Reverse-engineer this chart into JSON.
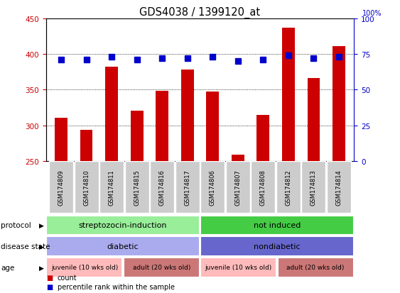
{
  "title": "GDS4038 / 1399120_at",
  "samples": [
    "GSM174809",
    "GSM174810",
    "GSM174811",
    "GSM174815",
    "GSM174816",
    "GSM174817",
    "GSM174806",
    "GSM174807",
    "GSM174808",
    "GSM174812",
    "GSM174813",
    "GSM174814"
  ],
  "bar_values": [
    310,
    294,
    382,
    320,
    348,
    378,
    347,
    259,
    314,
    437,
    366,
    411
  ],
  "percentile_values": [
    71,
    71,
    73,
    71,
    72,
    72,
    73,
    70,
    71,
    74,
    72,
    73
  ],
  "bar_color": "#cc0000",
  "marker_color": "#0000cc",
  "ylim_left": [
    250,
    450
  ],
  "ylim_right": [
    0,
    100
  ],
  "yticks_left": [
    250,
    300,
    350,
    400,
    450
  ],
  "yticks_right": [
    0,
    25,
    50,
    75,
    100
  ],
  "grid_values": [
    300,
    350,
    400
  ],
  "protocol_groups": [
    {
      "label": "streptozocin-induction",
      "start": 0,
      "end": 6,
      "color": "#99ee99"
    },
    {
      "label": "not induced",
      "start": 6,
      "end": 12,
      "color": "#44cc44"
    }
  ],
  "disease_groups": [
    {
      "label": "diabetic",
      "start": 0,
      "end": 6,
      "color": "#aaaaee"
    },
    {
      "label": "nondiabetic",
      "start": 6,
      "end": 12,
      "color": "#6666cc"
    }
  ],
  "age_groups": [
    {
      "label": "juvenile (10 wks old)",
      "start": 0,
      "end": 3,
      "color": "#ffbbbb"
    },
    {
      "label": "adult (20 wks old)",
      "start": 3,
      "end": 6,
      "color": "#cc7777"
    },
    {
      "label": "juvenile (10 wks old)",
      "start": 6,
      "end": 9,
      "color": "#ffbbbb"
    },
    {
      "label": "adult (20 wks old)",
      "start": 9,
      "end": 12,
      "color": "#cc7777"
    }
  ],
  "row_labels": [
    "protocol",
    "disease state",
    "age"
  ],
  "legend_items": [
    {
      "color": "#cc0000",
      "label": "count"
    },
    {
      "color": "#0000cc",
      "label": "percentile rank within the sample"
    }
  ],
  "bar_width": 0.5,
  "bg_color": "#ffffff",
  "tick_color_left": "#cc0000",
  "tick_color_right": "#0000cc",
  "xlabel_bg": "#cccccc"
}
